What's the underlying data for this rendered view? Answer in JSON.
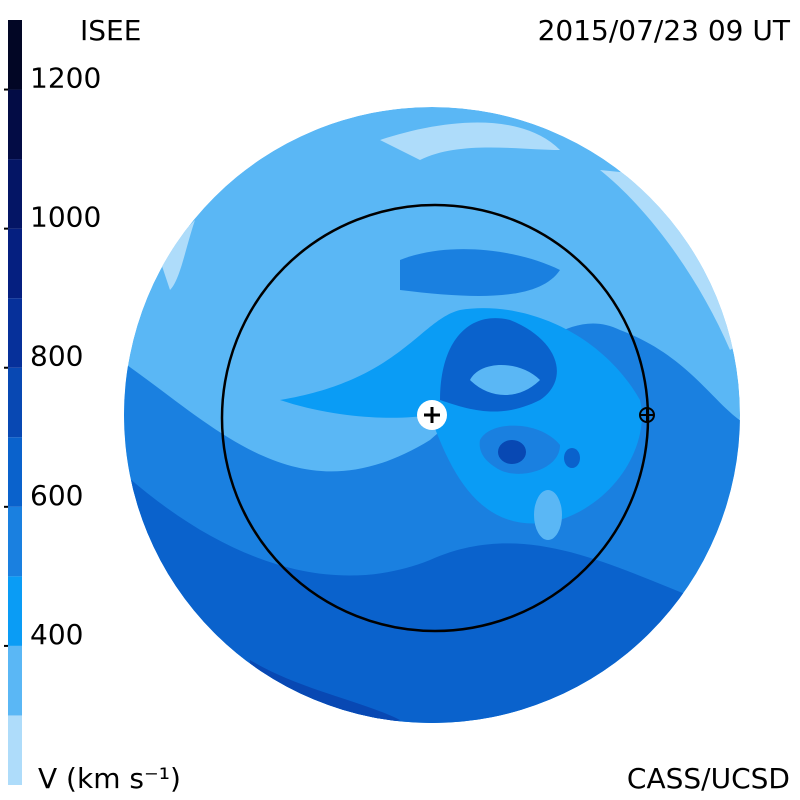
{
  "chart_data": {
    "type": "colorbar-map",
    "title": "ISEE",
    "subtitle": "2015/07/23 09 UT",
    "colorbar_label": "V (km s⁻¹)",
    "credit": "CASS/UCSD",
    "clim": [
      200,
      1300
    ],
    "cticks": [
      400,
      600,
      800,
      1000,
      1200
    ],
    "bands": [
      {
        "from": 200,
        "to": 300,
        "color": "#aedcfa"
      },
      {
        "from": 300,
        "to": 400,
        "color": "#5ab7f5"
      },
      {
        "from": 400,
        "to": 500,
        "color": "#0a9cf5"
      },
      {
        "from": 500,
        "to": 600,
        "color": "#1a80e0"
      },
      {
        "from": 600,
        "to": 700,
        "color": "#0a62cc"
      },
      {
        "from": 700,
        "to": 800,
        "color": "#0848b3"
      },
      {
        "from": 800,
        "to": 900,
        "color": "#06309a"
      },
      {
        "from": 900,
        "to": 1000,
        "color": "#051f80"
      },
      {
        "from": 1000,
        "to": 1100,
        "color": "#041565"
      },
      {
        "from": 1100,
        "to": 1200,
        "color": "#030c45"
      },
      {
        "from": 1200,
        "to": 1300,
        "color": "#020625"
      }
    ]
  }
}
